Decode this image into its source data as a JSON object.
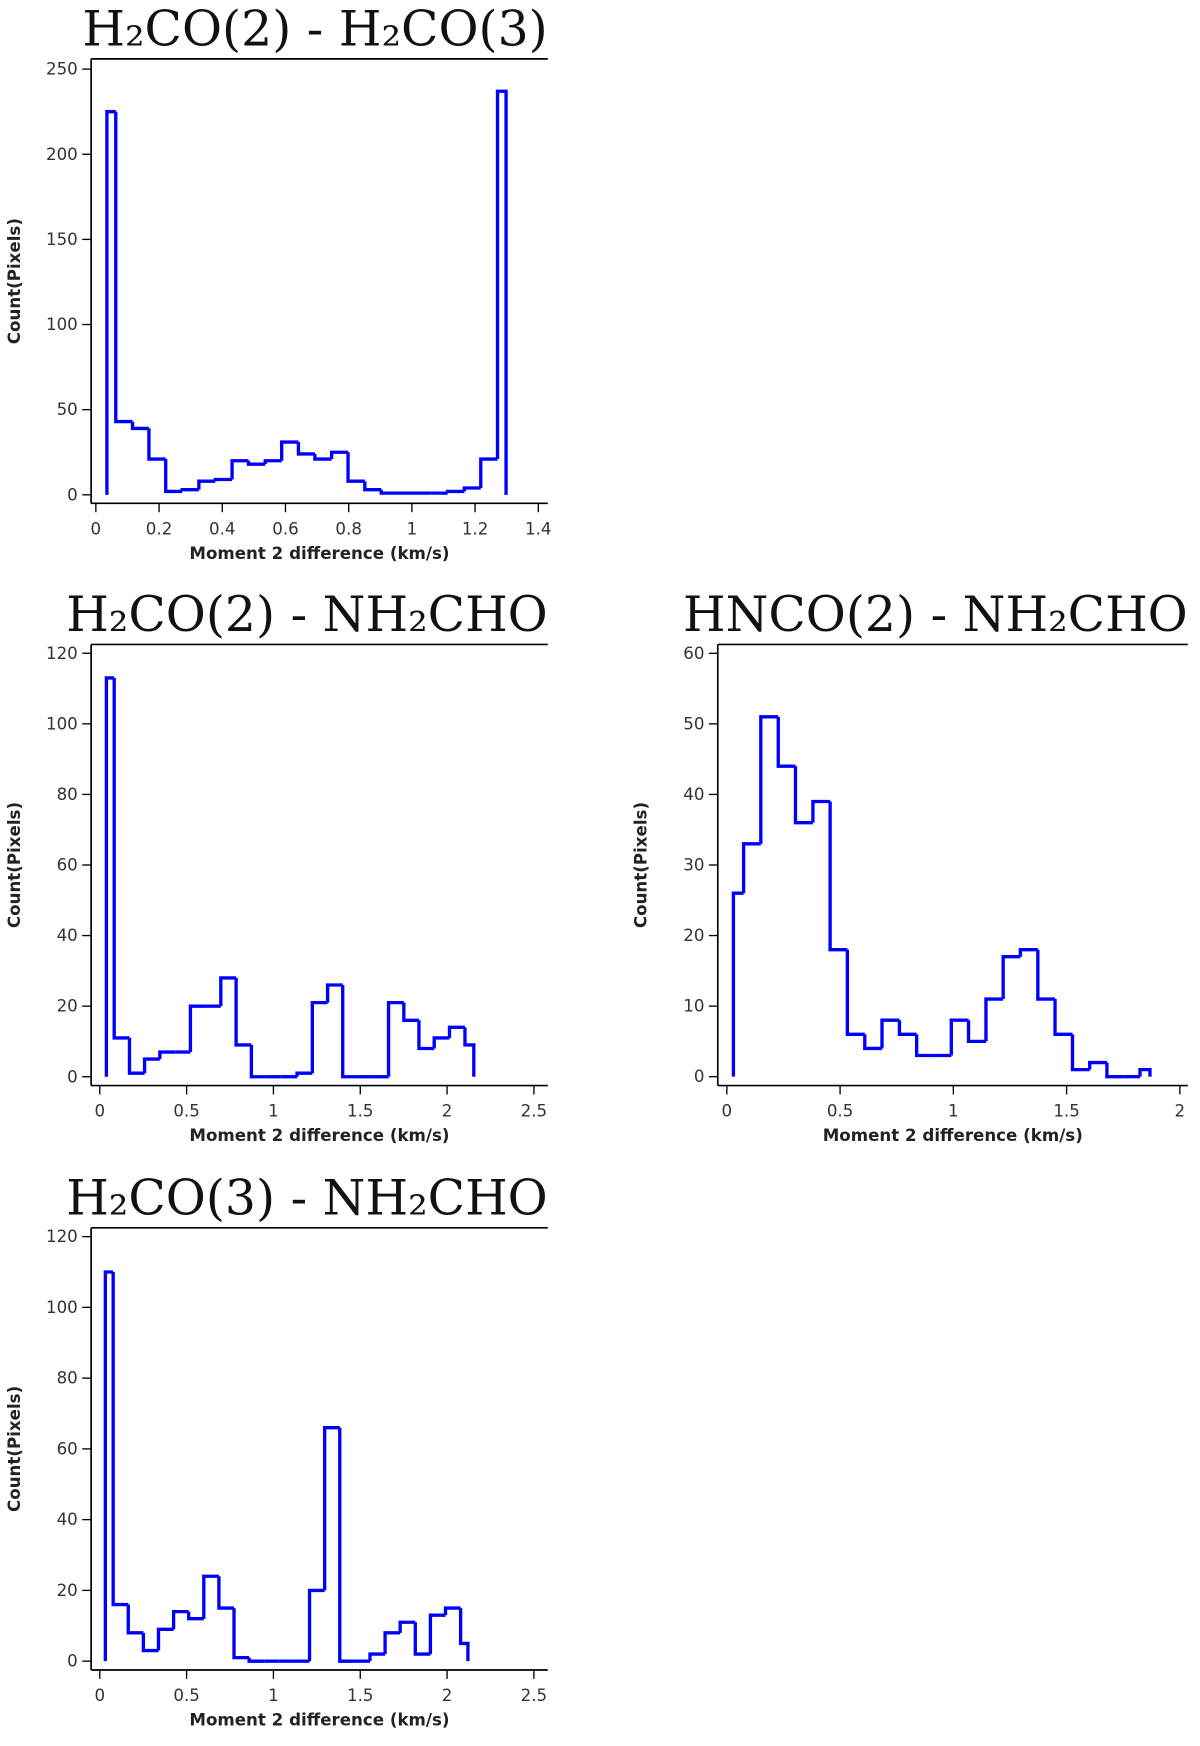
{
  "chart_data": [
    {
      "type": "histogram",
      "title": "H₂CO(2) - H₂CO(3)",
      "xlabel": "Moment 2 difference (km/s)",
      "ylabel": "Count(Pixels)",
      "color": "#0000ff",
      "bins": [
        0.035,
        0.063,
        0.116,
        0.168,
        0.221,
        0.273,
        0.326,
        0.378,
        0.431,
        0.483,
        0.536,
        0.588,
        0.641,
        0.693,
        0.746,
        0.798,
        0.851,
        0.903,
        0.956,
        1.008,
        1.061,
        1.113,
        1.166,
        1.218,
        1.271,
        1.298
      ],
      "counts": [
        225,
        43,
        39,
        21,
        2,
        3,
        8,
        9,
        20,
        18,
        20,
        31,
        24,
        21,
        25,
        8,
        3,
        1,
        1,
        1,
        1,
        2,
        4,
        21,
        237
      ],
      "xlim": [
        -0.015,
        1.43
      ],
      "ylim": [
        -5,
        256
      ],
      "xticks": [
        0,
        0.2,
        0.4,
        0.6,
        0.8,
        1,
        1.2,
        1.4
      ],
      "yticks": [
        0,
        50,
        100,
        150,
        200,
        250
      ]
    },
    {
      "type": "histogram",
      "title": "H₂CO(2) - NH₂CHO",
      "xlabel": "Moment 2 difference (km/s)",
      "ylabel": "Count(Pixels)",
      "color": "#0000ff",
      "bins": [
        0.038,
        0.083,
        0.171,
        0.258,
        0.346,
        0.434,
        0.522,
        0.609,
        0.697,
        0.785,
        0.873,
        0.961,
        1.048,
        1.136,
        1.224,
        1.312,
        1.399,
        1.487,
        1.575,
        1.663,
        1.751,
        1.838,
        1.926,
        2.014,
        2.103,
        2.154
      ],
      "counts": [
        113,
        11,
        1,
        5,
        7,
        7,
        20,
        20,
        28,
        9,
        0,
        0,
        0,
        1,
        21,
        26,
        0,
        0,
        0,
        21,
        16,
        8,
        11,
        14,
        9
      ],
      "xlim": [
        -0.05,
        2.58
      ],
      "ylim": [
        -2.5,
        122.5
      ],
      "xticks": [
        0,
        0.5,
        1,
        1.5,
        2,
        2.5
      ],
      "yticks": [
        0,
        20,
        40,
        60,
        80,
        100,
        120
      ]
    },
    {
      "type": "histogram",
      "title": "HNCO(2) - NH₂CHO",
      "xlabel": "Moment 2 difference (km/s)",
      "ylabel": "Count(Pixels)",
      "color": "#0000ff",
      "bins": [
        0.029,
        0.074,
        0.15,
        0.227,
        0.303,
        0.38,
        0.456,
        0.532,
        0.609,
        0.685,
        0.762,
        0.838,
        0.914,
        0.991,
        1.067,
        1.144,
        1.22,
        1.296,
        1.373,
        1.449,
        1.526,
        1.602,
        1.678,
        1.755,
        1.824,
        1.868
      ],
      "counts": [
        26,
        33,
        51,
        44,
        36,
        39,
        18,
        6,
        4,
        8,
        6,
        3,
        3,
        8,
        5,
        11,
        17,
        18,
        11,
        6,
        1,
        2,
        0,
        0,
        1
      ],
      "xlim": [
        -0.04,
        2.035
      ],
      "ylim": [
        -1.26,
        61.26
      ],
      "xticks": [
        0,
        0.5,
        1,
        1.5,
        2
      ],
      "yticks": [
        0,
        10,
        20,
        30,
        40,
        50,
        60
      ]
    },
    {
      "type": "histogram",
      "title": "H₂CO(3) - NH₂CHO",
      "xlabel": "Moment 2 difference (km/s)",
      "ylabel": "Count(Pixels)",
      "color": "#0000ff",
      "bins": [
        0.032,
        0.077,
        0.164,
        0.251,
        0.338,
        0.425,
        0.512,
        0.599,
        0.686,
        0.773,
        0.86,
        0.947,
        1.034,
        1.121,
        1.208,
        1.295,
        1.382,
        1.469,
        1.556,
        1.643,
        1.73,
        1.817,
        1.904,
        1.991,
        2.078,
        2.12
      ],
      "counts": [
        110,
        16,
        8,
        3,
        9,
        14,
        12,
        24,
        15,
        1,
        0,
        0,
        0,
        0,
        20,
        66,
        0,
        0,
        2,
        8,
        11,
        2,
        13,
        15,
        5
      ],
      "xlim": [
        -0.05,
        2.58
      ],
      "ylim": [
        -2.5,
        122.5
      ],
      "xticks": [
        0,
        0.5,
        1,
        1.5,
        2,
        2.5
      ],
      "yticks": [
        0,
        20,
        40,
        60,
        80,
        100,
        120
      ]
    }
  ]
}
